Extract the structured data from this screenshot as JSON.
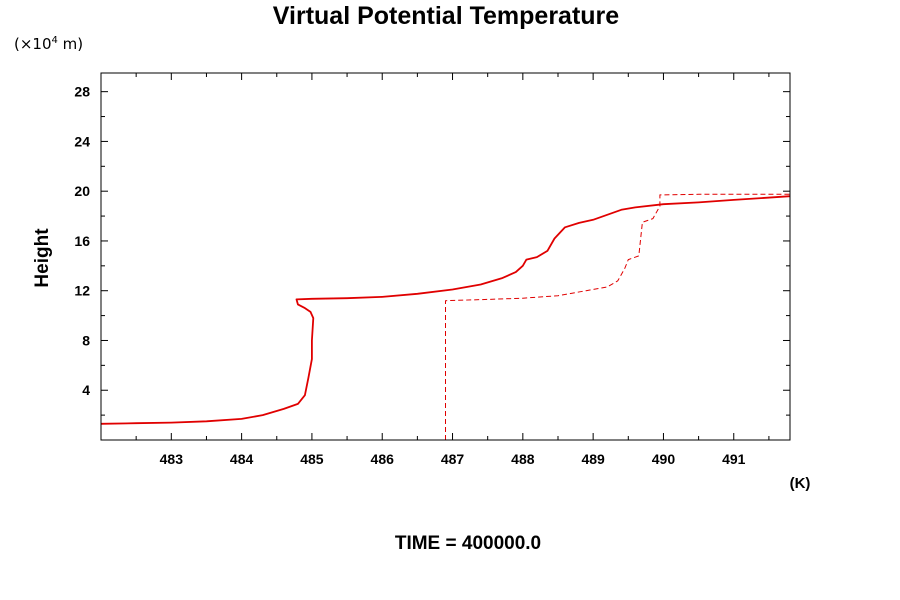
{
  "chart_data": {
    "type": "line",
    "title": "Virtual Potential Temperature",
    "y_unit": {
      "prefix": "(×10",
      "exponent": "4",
      "suffix": " m)"
    },
    "ylabel": "Height",
    "xlabel": "(K)",
    "footer": "TIME = 400000.0",
    "xlim": [
      482,
      491.8
    ],
    "ylim": [
      0,
      29.5
    ],
    "x_ticks": [
      483,
      484,
      485,
      486,
      487,
      488,
      489,
      490,
      491
    ],
    "y_ticks": [
      4,
      8,
      12,
      16,
      20,
      24,
      28
    ],
    "grid": false,
    "colors": {
      "series": "#e00000",
      "axis": "#000000"
    },
    "series": [
      {
        "style": "solid",
        "points": [
          [
            482.0,
            1.3
          ],
          [
            482.5,
            1.35
          ],
          [
            483.0,
            1.4
          ],
          [
            483.5,
            1.5
          ],
          [
            484.0,
            1.7
          ],
          [
            484.3,
            2.0
          ],
          [
            484.6,
            2.5
          ],
          [
            484.8,
            2.9
          ],
          [
            484.9,
            3.6
          ],
          [
            484.95,
            5.0
          ],
          [
            485.0,
            6.5
          ],
          [
            485.0,
            8.0
          ],
          [
            485.02,
            9.8
          ],
          [
            484.98,
            10.3
          ],
          [
            484.9,
            10.6
          ],
          [
            484.8,
            10.9
          ],
          [
            484.78,
            11.3
          ],
          [
            485.0,
            11.35
          ],
          [
            485.5,
            11.4
          ],
          [
            486.0,
            11.5
          ],
          [
            486.5,
            11.75
          ],
          [
            487.0,
            12.1
          ],
          [
            487.4,
            12.5
          ],
          [
            487.7,
            13.0
          ],
          [
            487.9,
            13.5
          ],
          [
            488.0,
            14.0
          ],
          [
            488.05,
            14.5
          ],
          [
            488.2,
            14.7
          ],
          [
            488.35,
            15.2
          ],
          [
            488.45,
            16.2
          ],
          [
            488.6,
            17.1
          ],
          [
            488.8,
            17.45
          ],
          [
            489.0,
            17.7
          ],
          [
            489.2,
            18.1
          ],
          [
            489.4,
            18.5
          ],
          [
            489.6,
            18.7
          ],
          [
            490.0,
            18.95
          ],
          [
            490.5,
            19.1
          ],
          [
            491.0,
            19.3
          ],
          [
            491.8,
            19.6
          ]
        ]
      },
      {
        "style": "dashed",
        "points": [
          [
            486.9,
            0.0
          ],
          [
            486.9,
            11.2
          ],
          [
            487.5,
            11.3
          ],
          [
            488.0,
            11.4
          ],
          [
            488.5,
            11.6
          ],
          [
            488.9,
            12.0
          ],
          [
            489.2,
            12.3
          ],
          [
            489.35,
            12.8
          ],
          [
            489.45,
            13.8
          ],
          [
            489.5,
            14.5
          ],
          [
            489.65,
            14.8
          ],
          [
            489.7,
            17.5
          ],
          [
            489.85,
            17.8
          ],
          [
            489.95,
            18.8
          ],
          [
            489.95,
            19.7
          ],
          [
            490.5,
            19.75
          ],
          [
            491.0,
            19.75
          ],
          [
            491.8,
            19.75
          ]
        ]
      }
    ]
  }
}
